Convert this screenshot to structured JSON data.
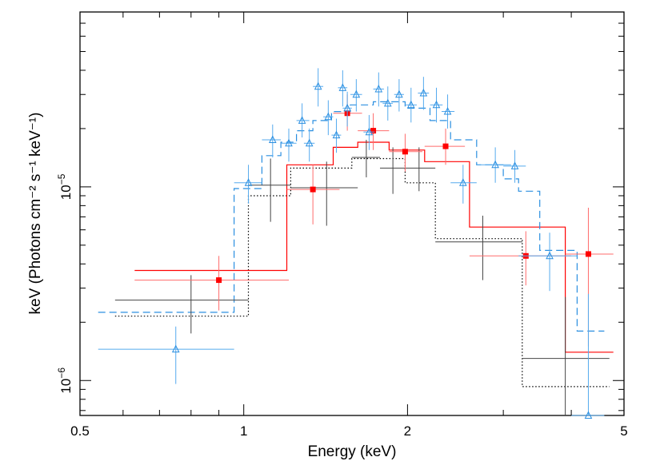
{
  "chart_data": {
    "type": "scatter",
    "xscale": "log",
    "yscale": "log",
    "xlim": [
      0.5,
      5
    ],
    "ylim": [
      6.6e-07,
      8e-05
    ],
    "xlabel": "Energy (keV)",
    "ylabel": "keV (Photons cm⁻² s⁻¹ keV⁻¹)",
    "xticks": [
      {
        "value": 0.5,
        "label": "0.5"
      },
      {
        "value": 1,
        "label": "1"
      },
      {
        "value": 2,
        "label": "2"
      },
      {
        "value": 5,
        "label": "5"
      }
    ],
    "yticks": [
      {
        "value": 1e-06,
        "base": "10",
        "exp": "−6"
      },
      {
        "value": 1e-05,
        "base": "10",
        "exp": "−5"
      }
    ],
    "series": [
      {
        "name": "black",
        "color": "#000000",
        "marker": "none",
        "points": [
          {
            "x": 0.8,
            "xlo": 0.58,
            "xhi": 1.02,
            "y": 2.6e-06,
            "ylo": 1.75e-06,
            "yhi": 3.5e-06
          },
          {
            "x": 1.12,
            "xlo": 1.02,
            "xhi": 1.22,
            "y": 1.02e-05,
            "ylo": 6.6e-06,
            "yhi": 1.4e-05
          },
          {
            "x": 1.42,
            "xlo": 1.22,
            "xhi": 1.62,
            "y": 9.9e-06,
            "ylo": 6.3e-06,
            "yhi": 1.35e-05
          },
          {
            "x": 1.68,
            "xlo": 1.58,
            "xhi": 1.78,
            "y": 1.42e-05,
            "ylo": 1.12e-05,
            "yhi": 1.75e-05
          },
          {
            "x": 1.88,
            "xlo": 1.78,
            "xhi": 1.98,
            "y": 1.25e-05,
            "ylo": 9.2e-06,
            "yhi": 1.6e-05
          },
          {
            "x": 2.1,
            "xlo": 1.98,
            "xhi": 2.25,
            "y": 1.25e-05,
            "ylo": 9.5e-06,
            "yhi": 1.6e-05
          },
          {
            "x": 2.75,
            "xlo": 2.25,
            "xhi": 3.25,
            "y": 5.2e-06,
            "ylo": 3.3e-06,
            "yhi": 7.1e-06
          },
          {
            "x": 3.9,
            "xlo": 3.25,
            "xhi": 4.7,
            "y": 1.3e-06,
            "ylo": 6.6e-07,
            "yhi": 2.7e-06
          }
        ]
      },
      {
        "name": "red",
        "color": "#ff0000",
        "marker": "square",
        "points": [
          {
            "x": 0.9,
            "xlo": 0.63,
            "xhi": 1.21,
            "y": 3.3e-06,
            "ylo": 2.3e-06,
            "yhi": 4.4e-06
          },
          {
            "x": 1.34,
            "xlo": 1.2,
            "xhi": 1.5,
            "y": 9.7e-06,
            "ylo": 6.4e-06,
            "yhi": 1.3e-05
          },
          {
            "x": 1.55,
            "xlo": 1.46,
            "xhi": 1.65,
            "y": 2.4e-05,
            "ylo": 1.95e-05,
            "yhi": 3e-05
          },
          {
            "x": 1.73,
            "xlo": 1.62,
            "xhi": 1.85,
            "y": 1.95e-05,
            "ylo": 1.55e-05,
            "yhi": 2.4e-05
          },
          {
            "x": 1.98,
            "xlo": 1.85,
            "xhi": 2.13,
            "y": 1.52e-05,
            "ylo": 1.2e-05,
            "yhi": 1.88e-05
          },
          {
            "x": 2.35,
            "xlo": 2.15,
            "xhi": 2.55,
            "y": 1.62e-05,
            "ylo": 1.3e-05,
            "yhi": 2e-05
          },
          {
            "x": 3.3,
            "xlo": 2.6,
            "xhi": 4.0,
            "y": 4.4e-06,
            "ylo": 3.1e-06,
            "yhi": 5.9e-06
          },
          {
            "x": 4.3,
            "xlo": 3.9,
            "xhi": 4.78,
            "y": 4.5e-06,
            "ylo": 1.5e-06,
            "yhi": 7.8e-06
          }
        ]
      },
      {
        "name": "blue",
        "color": "#2b8fe0",
        "marker": "triangle",
        "points": [
          {
            "x": 0.75,
            "xlo": 0.54,
            "xhi": 0.96,
            "y": 1.45e-06,
            "ylo": 9.6e-07,
            "yhi": 1.9e-06
          },
          {
            "x": 1.02,
            "xlo": 0.96,
            "xhi": 1.08,
            "y": 1.05e-05,
            "ylo": 8.2e-06,
            "yhi": 1.3e-05
          },
          {
            "x": 1.13,
            "xlo": 1.08,
            "xhi": 1.17,
            "y": 1.75e-05,
            "ylo": 1.42e-05,
            "yhi": 2.1e-05
          },
          {
            "x": 1.21,
            "xlo": 1.17,
            "xhi": 1.25,
            "y": 1.68e-05,
            "ylo": 1.35e-05,
            "yhi": 2e-05
          },
          {
            "x": 1.28,
            "xlo": 1.25,
            "xhi": 1.32,
            "y": 2.2e-05,
            "ylo": 1.8e-05,
            "yhi": 2.7e-05
          },
          {
            "x": 1.32,
            "xlo": 1.29,
            "xhi": 1.35,
            "y": 1.68e-05,
            "ylo": 1.35e-05,
            "yhi": 2e-05
          },
          {
            "x": 1.37,
            "xlo": 1.34,
            "xhi": 1.4,
            "y": 3.3e-05,
            "ylo": 2.6e-05,
            "yhi": 4.1e-05
          },
          {
            "x": 1.43,
            "xlo": 1.4,
            "xhi": 1.46,
            "y": 2.3e-05,
            "ylo": 1.85e-05,
            "yhi": 2.8e-05
          },
          {
            "x": 1.48,
            "xlo": 1.45,
            "xhi": 1.51,
            "y": 1.85e-05,
            "ylo": 1.5e-05,
            "yhi": 2.25e-05
          },
          {
            "x": 1.52,
            "xlo": 1.49,
            "xhi": 1.55,
            "y": 3.25e-05,
            "ylo": 2.6e-05,
            "yhi": 4e-05
          },
          {
            "x": 1.55,
            "xlo": 1.52,
            "xhi": 1.58,
            "y": 2.55e-05,
            "ylo": 2.05e-05,
            "yhi": 3.1e-05
          },
          {
            "x": 1.61,
            "xlo": 1.57,
            "xhi": 1.65,
            "y": 3e-05,
            "ylo": 2.45e-05,
            "yhi": 3.6e-05
          },
          {
            "x": 1.7,
            "xlo": 1.66,
            "xhi": 1.74,
            "y": 1.92e-05,
            "ylo": 1.55e-05,
            "yhi": 2.35e-05
          },
          {
            "x": 1.77,
            "xlo": 1.73,
            "xhi": 1.81,
            "y": 3.2e-05,
            "ylo": 2.6e-05,
            "yhi": 3.9e-05
          },
          {
            "x": 1.84,
            "xlo": 1.8,
            "xhi": 1.88,
            "y": 2.7e-05,
            "ylo": 2.2e-05,
            "yhi": 3.3e-05
          },
          {
            "x": 1.93,
            "xlo": 1.89,
            "xhi": 1.97,
            "y": 3e-05,
            "ylo": 2.45e-05,
            "yhi": 3.6e-05
          },
          {
            "x": 2.03,
            "xlo": 1.98,
            "xhi": 2.08,
            "y": 2.65e-05,
            "ylo": 2.15e-05,
            "yhi": 3.25e-05
          },
          {
            "x": 2.14,
            "xlo": 2.09,
            "xhi": 2.19,
            "y": 3.05e-05,
            "ylo": 2.5e-05,
            "yhi": 3.7e-05
          },
          {
            "x": 2.26,
            "xlo": 2.2,
            "xhi": 2.32,
            "y": 2.65e-05,
            "ylo": 2.15e-05,
            "yhi": 3.25e-05
          },
          {
            "x": 2.37,
            "xlo": 2.31,
            "xhi": 2.44,
            "y": 2.45e-05,
            "ylo": 2e-05,
            "yhi": 3e-05
          },
          {
            "x": 2.53,
            "xlo": 2.4,
            "xhi": 2.68,
            "y": 1.05e-05,
            "ylo": 8.2e-06,
            "yhi": 1.3e-05
          },
          {
            "x": 2.9,
            "xlo": 2.68,
            "xhi": 3.1,
            "y": 1.3e-05,
            "ylo": 1.05e-05,
            "yhi": 1.6e-05
          },
          {
            "x": 3.15,
            "xlo": 3.0,
            "xhi": 3.3,
            "y": 1.28e-05,
            "ylo": 1.05e-05,
            "yhi": 1.55e-05
          },
          {
            "x": 3.65,
            "xlo": 3.2,
            "xhi": 4.1,
            "y": 4.4e-06,
            "ylo": 2.9e-06,
            "yhi": 5.8e-06
          },
          {
            "x": 4.3,
            "xlo": 4.0,
            "xhi": 4.6,
            "y": 6.6e-07,
            "ylo": 6.6e-07,
            "yhi": 2.8e-06
          }
        ]
      }
    ],
    "models": [
      {
        "name": "black-model",
        "color": "#000000",
        "style": "dotted",
        "steps": [
          {
            "x0": 0.58,
            "x1": 1.02,
            "y": 2.15e-06
          },
          {
            "x0": 1.02,
            "x1": 1.22,
            "y": 9e-06
          },
          {
            "x0": 1.22,
            "x1": 1.58,
            "y": 1.25e-05
          },
          {
            "x0": 1.58,
            "x1": 1.98,
            "y": 1.4e-05
          },
          {
            "x0": 1.98,
            "x1": 2.25,
            "y": 1.05e-05
          },
          {
            "x0": 2.25,
            "x1": 3.25,
            "y": 5.4e-06
          },
          {
            "x0": 3.25,
            "x1": 4.7,
            "y": 9.3e-07
          }
        ]
      },
      {
        "name": "red-model",
        "color": "#ff0000",
        "style": "solid",
        "steps": [
          {
            "x0": 0.63,
            "x1": 1.2,
            "y": 3.7e-06
          },
          {
            "x0": 1.2,
            "x1": 1.46,
            "y": 1.3e-05
          },
          {
            "x0": 1.46,
            "x1": 1.62,
            "y": 1.6e-05
          },
          {
            "x0": 1.62,
            "x1": 1.85,
            "y": 1.7e-05
          },
          {
            "x0": 1.85,
            "x1": 2.15,
            "y": 1.55e-05
          },
          {
            "x0": 2.15,
            "x1": 2.6,
            "y": 1.35e-05
          },
          {
            "x0": 2.6,
            "x1": 3.9,
            "y": 6.2e-06
          },
          {
            "x0": 3.9,
            "x1": 4.78,
            "y": 1.4e-06
          }
        ]
      },
      {
        "name": "blue-model",
        "color": "#2b8fe0",
        "style": "dashed",
        "steps": [
          {
            "x0": 0.54,
            "x1": 0.96,
            "y": 2.25e-06
          },
          {
            "x0": 0.96,
            "x1": 1.08,
            "y": 9.8e-06
          },
          {
            "x0": 1.08,
            "x1": 1.17,
            "y": 1.45e-05
          },
          {
            "x0": 1.17,
            "x1": 1.25,
            "y": 1.7e-05
          },
          {
            "x0": 1.25,
            "x1": 1.34,
            "y": 1.95e-05
          },
          {
            "x0": 1.34,
            "x1": 1.45,
            "y": 2.2e-05
          },
          {
            "x0": 1.45,
            "x1": 1.57,
            "y": 2.45e-05
          },
          {
            "x0": 1.57,
            "x1": 1.73,
            "y": 2.65e-05
          },
          {
            "x0": 1.73,
            "x1": 1.98,
            "y": 2.75e-05
          },
          {
            "x0": 1.98,
            "x1": 2.2,
            "y": 2.55e-05
          },
          {
            "x0": 2.2,
            "x1": 2.4,
            "y": 2.2e-05
          },
          {
            "x0": 2.4,
            "x1": 2.68,
            "y": 1.75e-05
          },
          {
            "x0": 2.68,
            "x1": 3.0,
            "y": 1.3e-05
          },
          {
            "x0": 3.0,
            "x1": 3.2,
            "y": 1.1e-05
          },
          {
            "x0": 3.2,
            "x1": 3.5,
            "y": 9.5e-06
          },
          {
            "x0": 3.5,
            "x1": 4.1,
            "y": 4.7e-06
          },
          {
            "x0": 4.1,
            "x1": 4.6,
            "y": 1.8e-06
          }
        ]
      }
    ]
  }
}
